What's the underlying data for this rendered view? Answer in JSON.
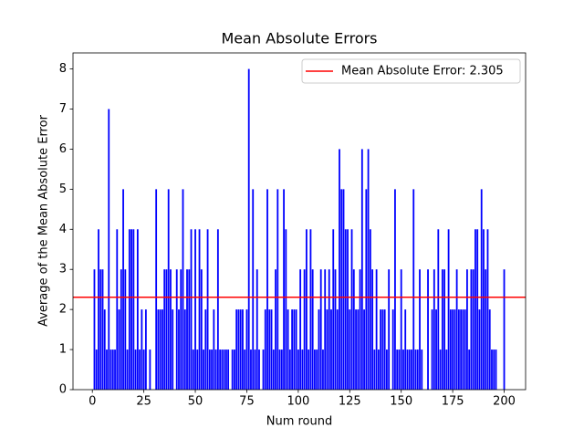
{
  "chart_data": {
    "type": "bar",
    "title": "Mean Absolute Errors",
    "xlabel": "Num round",
    "ylabel": "Average of the Mean Absolute Error",
    "x": [
      1,
      2,
      3,
      4,
      5,
      6,
      7,
      8,
      9,
      10,
      11,
      12,
      13,
      14,
      15,
      16,
      17,
      18,
      19,
      20,
      21,
      22,
      23,
      24,
      25,
      26,
      27,
      28,
      29,
      30,
      31,
      32,
      33,
      34,
      35,
      36,
      37,
      38,
      39,
      40,
      41,
      42,
      43,
      44,
      45,
      46,
      47,
      48,
      49,
      50,
      51,
      52,
      53,
      54,
      55,
      56,
      57,
      58,
      59,
      60,
      61,
      62,
      63,
      64,
      65,
      66,
      67,
      68,
      69,
      70,
      71,
      72,
      73,
      74,
      75,
      76,
      77,
      78,
      79,
      80,
      81,
      82,
      83,
      84,
      85,
      86,
      87,
      88,
      89,
      90,
      91,
      92,
      93,
      94,
      95,
      96,
      97,
      98,
      99,
      100,
      101,
      102,
      103,
      104,
      105,
      106,
      107,
      108,
      109,
      110,
      111,
      112,
      113,
      114,
      115,
      116,
      117,
      118,
      119,
      120,
      121,
      122,
      123,
      124,
      125,
      126,
      127,
      128,
      129,
      130,
      131,
      132,
      133,
      134,
      135,
      136,
      137,
      138,
      139,
      140,
      141,
      142,
      143,
      144,
      145,
      146,
      147,
      148,
      149,
      150,
      151,
      152,
      153,
      154,
      155,
      156,
      157,
      158,
      159,
      160,
      161,
      162,
      163,
      164,
      165,
      166,
      167,
      168,
      169,
      170,
      171,
      172,
      173,
      174,
      175,
      176,
      177,
      178,
      179,
      180,
      181,
      182,
      183,
      184,
      185,
      186,
      187,
      188,
      189,
      190,
      191,
      192,
      193,
      194,
      195,
      196,
      197,
      198,
      199,
      200
    ],
    "values": [
      3,
      1,
      4,
      3,
      3,
      2,
      1,
      7,
      1,
      1,
      1,
      4,
      2,
      3,
      5,
      3,
      1,
      4,
      4,
      4,
      1,
      4,
      1,
      2,
      1,
      2,
      0,
      1,
      0,
      0,
      5,
      2,
      2,
      2,
      3,
      3,
      5,
      3,
      2,
      0,
      3,
      2,
      3,
      5,
      2,
      3,
      3,
      4,
      1,
      4,
      1,
      4,
      3,
      1,
      2,
      4,
      1,
      1,
      2,
      1,
      4,
      1,
      1,
      1,
      1,
      1,
      0,
      1,
      1,
      2,
      2,
      2,
      2,
      1,
      2,
      8,
      1,
      5,
      1,
      3,
      1,
      0,
      1,
      2,
      5,
      2,
      2,
      1,
      3,
      5,
      1,
      1,
      5,
      4,
      2,
      1,
      2,
      2,
      2,
      1,
      3,
      1,
      3,
      4,
      1,
      4,
      3,
      1,
      1,
      2,
      3,
      1,
      3,
      2,
      3,
      2,
      4,
      3,
      2,
      6,
      5,
      5,
      4,
      4,
      2,
      4,
      3,
      2,
      2,
      3,
      6,
      2,
      5,
      6,
      4,
      3,
      1,
      3,
      1,
      2,
      2,
      2,
      1,
      3,
      0,
      2,
      5,
      1,
      1,
      3,
      1,
      2,
      1,
      1,
      1,
      5,
      1,
      1,
      3,
      1,
      0,
      0,
      3,
      0,
      2,
      3,
      2,
      4,
      1,
      3,
      3,
      1,
      4,
      2,
      2,
      2,
      3,
      2,
      2,
      2,
      2,
      3,
      1,
      3,
      3,
      4,
      4,
      2,
      5,
      4,
      3,
      4,
      2,
      1,
      1,
      1,
      0,
      0,
      0,
      3
    ],
    "color": "blue",
    "bar_width": 0.8,
    "hline": {
      "name": "Mean Absolute Error: 2.305",
      "value": 2.305,
      "color": "red"
    },
    "xlim": [
      -9.4,
      210.4
    ],
    "ylim": [
      0,
      8.4
    ],
    "xticks": [
      0,
      25,
      50,
      75,
      100,
      125,
      150,
      175,
      200
    ],
    "yticks": [
      0,
      1,
      2,
      3,
      4,
      5,
      6,
      7,
      8
    ],
    "legend": "upper right"
  }
}
